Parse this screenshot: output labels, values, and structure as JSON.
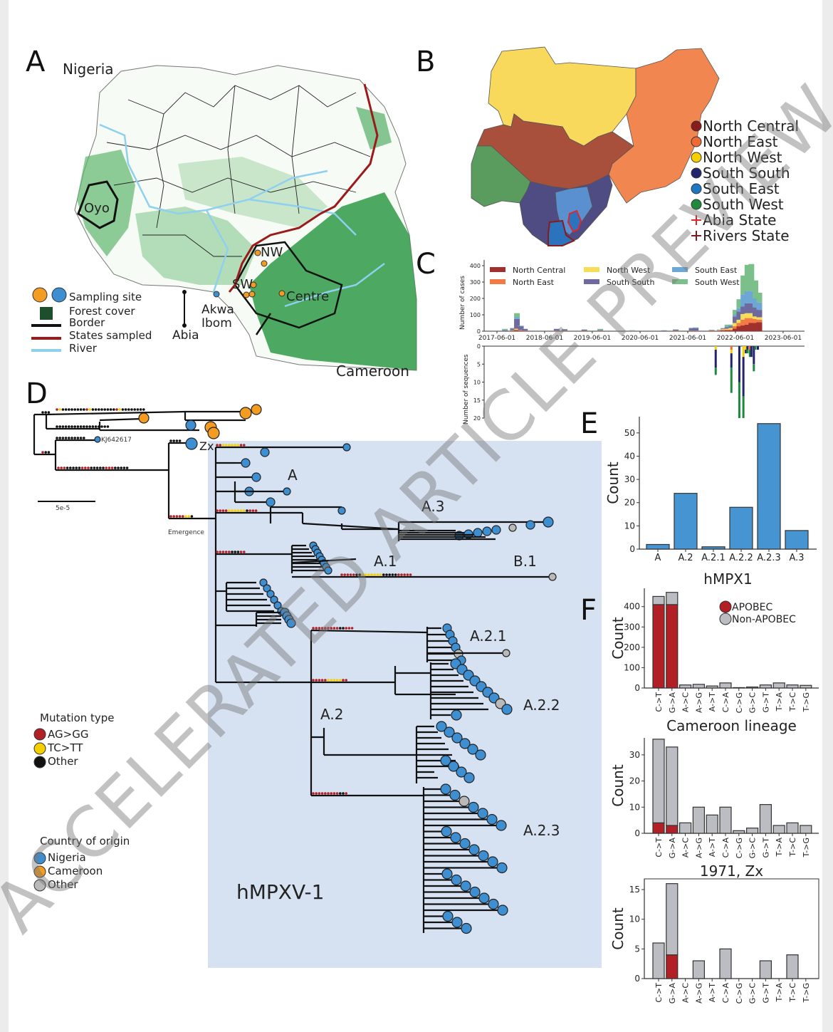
{
  "panels": {
    "A": "A",
    "B": "B",
    "C": "C",
    "D": "D",
    "E": "E",
    "F": "F"
  },
  "watermark": "ACCELERATED ARTICLE PREVIEW",
  "map_a": {
    "title": "Nigeria",
    "labels": {
      "oyo": "Oyo",
      "nw": "NW",
      "sw": "SW",
      "centre": "Centre",
      "akwa": "Akwa",
      "ibom": "Ibom",
      "abia": "Abia",
      "cameroon": "Cameroon"
    },
    "legend": [
      {
        "label": "Sampling site",
        "colors": [
          "#f39c1f",
          "#3d8fd1"
        ]
      },
      {
        "label": "Forest cover",
        "color": "#1d4f2c"
      },
      {
        "label": "Border",
        "color": "#111111"
      },
      {
        "label": "States sampled",
        "color": "#9b1b1b"
      },
      {
        "label": "River",
        "color": "#8fd0ef"
      }
    ]
  },
  "map_b": {
    "legend": [
      {
        "label": "North Central",
        "color": "#8b1a1a",
        "marker": "circle"
      },
      {
        "label": "North East",
        "color": "#ee6a35",
        "marker": "circle"
      },
      {
        "label": "North West",
        "color": "#f5d000",
        "marker": "circle"
      },
      {
        "label": "South South",
        "color": "#23246a",
        "marker": "circle"
      },
      {
        "label": "South East",
        "color": "#1f77c4",
        "marker": "circle"
      },
      {
        "label": "South West",
        "color": "#1f8a3e",
        "marker": "circle"
      },
      {
        "label": "Abia State",
        "color": "#e0262b",
        "marker": "cross"
      },
      {
        "label": "Rivers State",
        "color": "#7a1a1a",
        "marker": "cross"
      }
    ],
    "region_colors": {
      "north_west": "#f9d95c",
      "north_east": "#f28650",
      "north_central": "#a8503c",
      "south_west": "#5a9c5e",
      "south_south": "#4e4c82",
      "south_east": "#5a8fd0"
    }
  },
  "chart_data": [
    {
      "id": "C-top",
      "type": "bar",
      "stacked": true,
      "ylabel": "Number of cases",
      "ylim": [
        0,
        420
      ],
      "yticks": [
        0,
        100,
        200,
        300,
        400
      ],
      "xticks": [
        "2017-06-01",
        "2018-06-01",
        "2019-06-01",
        "2020-06-01",
        "2021-06-01",
        "2022-06-01",
        "2023-06-01"
      ],
      "series_names": [
        "North Central",
        "North East",
        "North West",
        "South South",
        "South East",
        "South West"
      ],
      "series_colors": [
        "#a0302d",
        "#f27a45",
        "#f7de5a",
        "#6f6a9e",
        "#6fa6d8",
        "#7bbf8a"
      ],
      "bins": [
        {
          "date": "2017-08",
          "values": [
            0,
            0,
            0,
            6,
            2,
            6
          ]
        },
        {
          "date": "2017-10",
          "values": [
            2,
            2,
            2,
            10,
            2,
            2
          ]
        },
        {
          "date": "2017-11",
          "values": [
            5,
            5,
            5,
            60,
            10,
            25
          ]
        },
        {
          "date": "2017-12",
          "values": [
            2,
            2,
            2,
            24,
            2,
            2
          ]
        },
        {
          "date": "2018-01",
          "values": [
            1,
            1,
            1,
            10,
            1,
            1
          ]
        },
        {
          "date": "2018-09",
          "values": [
            1,
            1,
            1,
            10,
            1,
            1
          ]
        },
        {
          "date": "2018-11",
          "values": [
            1,
            1,
            1,
            8,
            1,
            1
          ]
        },
        {
          "date": "2019-04",
          "values": [
            1,
            1,
            1,
            6,
            1,
            1
          ]
        },
        {
          "date": "2019-08",
          "values": [
            1,
            1,
            1,
            4,
            1,
            6
          ]
        },
        {
          "date": "2020-04",
          "values": [
            0,
            0,
            1,
            2,
            1,
            2
          ]
        },
        {
          "date": "2020-12",
          "values": [
            0,
            0,
            0,
            4,
            1,
            1
          ]
        },
        {
          "date": "2021-03",
          "values": [
            1,
            1,
            1,
            6,
            1,
            1
          ]
        },
        {
          "date": "2021-07",
          "values": [
            1,
            1,
            1,
            14,
            2,
            2
          ]
        },
        {
          "date": "2021-08",
          "values": [
            1,
            1,
            1,
            16,
            2,
            2
          ]
        },
        {
          "date": "2021-12",
          "values": [
            2,
            2,
            1,
            2,
            1,
            1
          ]
        },
        {
          "date": "2022-02",
          "values": [
            2,
            2,
            2,
            2,
            1,
            1
          ]
        },
        {
          "date": "2022-03",
          "values": [
            4,
            4,
            4,
            4,
            2,
            2
          ]
        },
        {
          "date": "2022-04",
          "values": [
            5,
            5,
            5,
            10,
            5,
            10
          ]
        },
        {
          "date": "2022-05",
          "values": [
            5,
            5,
            10,
            10,
            5,
            5
          ]
        },
        {
          "date": "2022-06",
          "values": [
            15,
            15,
            20,
            40,
            10,
            30
          ]
        },
        {
          "date": "2022-07",
          "values": [
            30,
            20,
            20,
            50,
            20,
            55
          ]
        },
        {
          "date": "2022-08",
          "values": [
            35,
            35,
            35,
            45,
            75,
            115
          ]
        },
        {
          "date": "2022-09",
          "values": [
            40,
            40,
            30,
            60,
            75,
            160
          ]
        },
        {
          "date": "2022-10",
          "values": [
            50,
            30,
            30,
            60,
            75,
            165
          ]
        },
        {
          "date": "2022-11",
          "values": [
            50,
            25,
            15,
            55,
            55,
            110
          ]
        },
        {
          "date": "2022-12",
          "values": [
            55,
            15,
            15,
            45,
            45,
            60
          ]
        }
      ],
      "legend_placement": "top-left"
    },
    {
      "id": "C-bottom",
      "type": "bar",
      "stacked": true,
      "inverted": true,
      "ylabel": "Number of sequences",
      "ylim": [
        0,
        20
      ],
      "yticks": [
        0,
        5,
        10,
        15,
        20
      ],
      "series_names": [
        "North East",
        "North West",
        "South South",
        "South West"
      ],
      "series_colors": [
        "#ee6a35",
        "#f5d000",
        "#23246a",
        "#1f8a3e"
      ],
      "bins": [
        {
          "date": "2022-01",
          "values": [
            0,
            1,
            5,
            2
          ]
        },
        {
          "date": "2022-05",
          "values": [
            1,
            1,
            4,
            7
          ]
        },
        {
          "date": "2022-07",
          "values": [
            0,
            0,
            10,
            10
          ]
        },
        {
          "date": "2022-08",
          "values": [
            0,
            3,
            11,
            6
          ]
        },
        {
          "date": "2022-08-20",
          "values": [
            0,
            1,
            1,
            0
          ]
        },
        {
          "date": "2022-09",
          "values": [
            0,
            0,
            1,
            1
          ]
        },
        {
          "date": "2022-09-20",
          "values": [
            1,
            0,
            0,
            2
          ]
        },
        {
          "date": "2022-10",
          "values": [
            0,
            0,
            3,
            0
          ]
        },
        {
          "date": "2022-10-20",
          "values": [
            0,
            0,
            5,
            2
          ]
        },
        {
          "date": "2022-11",
          "values": [
            0,
            0,
            0,
            1
          ]
        },
        {
          "date": "2022-11-20",
          "values": [
            0,
            0,
            1,
            0
          ]
        }
      ]
    },
    {
      "id": "E",
      "type": "bar",
      "ylabel": "Count",
      "xlabel": "hMPX1",
      "categories": [
        "A",
        "A.2",
        "A.2.1",
        "A.2.2",
        "A.2.3",
        "A.3"
      ],
      "values": [
        2,
        24,
        1,
        18,
        54,
        8
      ],
      "ylim": [
        0,
        57
      ],
      "yticks": [
        0,
        10,
        20,
        30,
        40,
        50
      ],
      "color": "#4694d1"
    },
    {
      "id": "F-hMPX1",
      "type": "bar",
      "stacked": true,
      "ylabel": "Count",
      "xlabel": "Cameroon lineage",
      "categories": [
        "C->T",
        "G->A",
        "A->C",
        "A->G",
        "A->T",
        "C->A",
        "C->G",
        "G->C",
        "G->T",
        "T->A",
        "T->C",
        "T->G"
      ],
      "series": [
        {
          "name": "APOBEC",
          "values": [
            410,
            410,
            0,
            0,
            0,
            0,
            0,
            0,
            0,
            0,
            0,
            0
          ]
        },
        {
          "name": "Non-APOBEC",
          "values": [
            40,
            60,
            15,
            18,
            10,
            25,
            2,
            5,
            15,
            25,
            15,
            13
          ]
        }
      ],
      "ylim": [
        0,
        490
      ],
      "yticks": [
        0,
        100,
        200,
        300,
        400
      ],
      "legend_placement": "top-right"
    },
    {
      "id": "F-cameroon",
      "type": "bar",
      "stacked": true,
      "ylabel": "Count",
      "xlabel": "1971, Zx",
      "categories": [
        "C->T",
        "G->A",
        "A->C",
        "A->G",
        "A->T",
        "C->A",
        "C->G",
        "G->C",
        "G->T",
        "T->A",
        "T->C",
        "T->G"
      ],
      "series": [
        {
          "name": "APOBEC",
          "values": [
            4,
            3,
            0,
            0,
            0,
            0,
            0,
            0,
            0,
            0,
            0,
            0
          ]
        },
        {
          "name": "Non-APOBEC",
          "values": [
            32,
            30,
            4,
            10,
            7,
            10,
            1,
            2,
            11,
            3,
            4,
            3
          ]
        }
      ],
      "ylim": [
        0,
        36.5
      ],
      "yticks": [
        0,
        10,
        20,
        30
      ]
    },
    {
      "id": "F-1971-Zx",
      "type": "bar",
      "stacked": true,
      "ylabel": "Count",
      "categories": [
        "C->T",
        "G->A",
        "A->C",
        "A->G",
        "A->T",
        "C->A",
        "C->G",
        "G->C",
        "G->T",
        "T->A",
        "T->C",
        "T->G"
      ],
      "series": [
        {
          "name": "APOBEC",
          "values": [
            0,
            4,
            0,
            0,
            0,
            0,
            0,
            0,
            0,
            0,
            0,
            0
          ]
        },
        {
          "name": "Non-APOBEC",
          "values": [
            6,
            12,
            0,
            3,
            0,
            5,
            0,
            0,
            3,
            0,
            4,
            0
          ]
        }
      ],
      "ylim": [
        0,
        16.8
      ],
      "yticks": [
        0,
        5,
        10,
        15
      ]
    }
  ],
  "f_legend": [
    {
      "label": "APOBEC",
      "color": "#b22026"
    },
    {
      "label": "Non-APOBEC",
      "color": "#bcbdc2"
    }
  ],
  "tree": {
    "scale_label": "5e-5",
    "reference_label": "KJ642617",
    "zx_label": "Zx",
    "emergence_label": "Emergence",
    "lineage_label": "hMPXV-1",
    "clades": [
      "A",
      "A.3",
      "A.1",
      "B.1",
      "A.2.1",
      "A.2.2",
      "A.2",
      "A.2.3"
    ],
    "highlight_color": "#d6e1f2",
    "mutation_legend": {
      "title": "Mutation type",
      "items": [
        {
          "label": "AG>GG",
          "color": "#b22026"
        },
        {
          "label": "TC>TT",
          "color": "#f5d000"
        },
        {
          "label": "Other",
          "color": "#111111"
        }
      ]
    },
    "country_legend": {
      "title": "Country of origin",
      "items": [
        {
          "label": "Nigeria",
          "color": "#3d8fd1"
        },
        {
          "label": "Cameroon",
          "color": "#f39c1f"
        },
        {
          "label": "Other",
          "color": "#b9b9b9"
        }
      ]
    }
  }
}
